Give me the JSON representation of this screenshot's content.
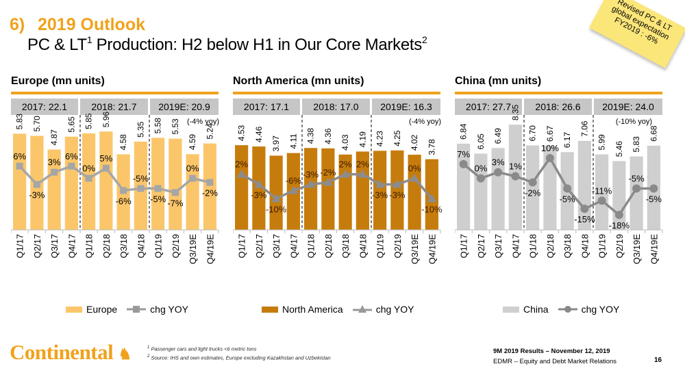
{
  "header": {
    "section_number": "6)",
    "section_title": "2019 Outlook",
    "subtitle_part1": "PC & LT",
    "subtitle_sup1": "1",
    "subtitle_part2": " Production: H2 below H1 in Our Core Markets",
    "subtitle_sup2": "2"
  },
  "sticky_note": {
    "line1": "Revised PC & LT",
    "line2": "global expectation",
    "line3": "FY2019 : -6%"
  },
  "colors": {
    "accent": "#f0a21c",
    "europe_bar": "#fbc66a",
    "north_america_bar": "#c67c0c",
    "china_bar": "#cfcfcf",
    "line": "#999999",
    "year_box": "#c6c6c6"
  },
  "chart_data": [
    {
      "type": "bar",
      "title": "Europe (mn units)",
      "year_totals": [
        "2017: 22.1",
        "2018: 21.7",
        "2019E: 20.9"
      ],
      "outlook_note": "(-4% yoy)",
      "categories": [
        "Q1/17",
        "Q2/17",
        "Q3/17",
        "Q4/17",
        "Q1/18",
        "Q2/18",
        "Q3/18",
        "Q4/18",
        "Q1/19",
        "Q2/19",
        "Q3/19E",
        "Q4/19E"
      ],
      "series": [
        {
          "name": "Europe",
          "kind": "bar",
          "values": [
            5.83,
            5.7,
            4.87,
            5.65,
            5.85,
            5.96,
            4.58,
            5.35,
            5.58,
            5.53,
            4.59,
            5.24
          ],
          "labels": [
            "5.83",
            "5.70",
            "4.87",
            "5.65",
            "5.85",
            "5.96",
            "4.58",
            "5.35",
            "5.58",
            "5.53",
            "4.59",
            "5.24"
          ]
        },
        {
          "name": "chg YOY",
          "kind": "line",
          "marker": "square",
          "values": [
            6,
            -3,
            3,
            6,
            0,
            5,
            -6,
            -5,
            -5,
            -7,
            0,
            -2
          ],
          "labels": [
            "6%",
            "-3%",
            "3%",
            "6%",
            "0%",
            "5%",
            "-6%",
            "-5%",
            "-5%",
            "-7%",
            "0%",
            "-2%"
          ]
        }
      ],
      "legend": [
        "Europe",
        "chg YOY"
      ],
      "legend_position": "bottom"
    },
    {
      "type": "bar",
      "title": "North America (mn units)",
      "year_totals": [
        "2017: 17.1",
        "2018: 17.0",
        "2019E: 16.3"
      ],
      "outlook_note": "(-4% yoy)",
      "categories": [
        "Q1/17",
        "Q2/17",
        "Q3/17",
        "Q4/17",
        "Q1/18",
        "Q2/18",
        "Q3/18",
        "Q4/18",
        "Q1/19",
        "Q2/19",
        "Q3/19E",
        "Q4/19E"
      ],
      "series": [
        {
          "name": "North America",
          "kind": "bar",
          "values": [
            4.53,
            4.46,
            3.97,
            4.11,
            4.38,
            4.36,
            4.03,
            4.19,
            4.23,
            4.25,
            4.02,
            3.78
          ],
          "labels": [
            "4.53",
            "4.46",
            "3.97",
            "4.11",
            "4.38",
            "4.36",
            "4.03",
            "4.19",
            "4.23",
            "4.25",
            "4.02",
            "3.78"
          ]
        },
        {
          "name": "chg YOY",
          "kind": "line",
          "marker": "triangle",
          "values": [
            2,
            -3,
            -10,
            -6,
            -3,
            -2,
            2,
            2,
            -3,
            -3,
            0,
            -10
          ],
          "labels": [
            "2%",
            "-3%",
            "-10%",
            "-6%",
            "-3%",
            "-2%",
            "2%",
            "2%",
            "-3%",
            "-3%",
            "0%",
            "-10%"
          ]
        }
      ],
      "legend": [
        "North America",
        "chg YOY"
      ],
      "legend_position": "bottom"
    },
    {
      "type": "bar",
      "title": "China (mn units)",
      "year_totals": [
        "2017: 27.7",
        "2018: 26.6",
        "2019E: 24.0"
      ],
      "outlook_note": "(-10% yoy)",
      "categories": [
        "Q1/17",
        "Q2/17",
        "Q3/17",
        "Q4/17",
        "Q1/18",
        "Q2/18",
        "Q3/18",
        "Q4/18",
        "Q1/19",
        "Q2/19",
        "Q3/19E",
        "Q4/19E"
      ],
      "series": [
        {
          "name": "China",
          "kind": "bar",
          "values": [
            6.84,
            6.05,
            6.49,
            8.35,
            6.7,
            6.67,
            6.17,
            7.06,
            5.99,
            5.46,
            5.83,
            6.68
          ],
          "labels": [
            "6.84",
            "6.05",
            "6.49",
            "8.35",
            "6.70",
            "6.67",
            "6.17",
            "7.06",
            "5.99",
            "5.46",
            "5.83",
            "6.68"
          ]
        },
        {
          "name": "chg YOY",
          "kind": "line",
          "marker": "circle",
          "values": [
            7,
            0,
            3,
            1,
            -2,
            10,
            -5,
            -15,
            -11,
            -18,
            -5,
            -5
          ],
          "labels": [
            "7%",
            "0%",
            "3%",
            "1%",
            "-2%",
            "10%",
            "-5%",
            "-15%",
            "-11%",
            "-18%",
            "-5%",
            "-5%"
          ]
        }
      ],
      "legend": [
        "China",
        "chg YOY"
      ],
      "legend_position": "bottom"
    }
  ],
  "footer": {
    "logo_text": "Continental",
    "footnote1": "Passenger cars and light trucks <6 metric tons",
    "footnote1_marker": "1",
    "footnote2": "Source: IHS and own estimates, Europe excluding Kazakhstan and Uzbekistan",
    "footnote2_marker": "2",
    "event_line": "9M 2019 Results – November 12, 2019",
    "dept_line": "EDMR – Equity and Debt Market Relations",
    "page_number": "16"
  }
}
